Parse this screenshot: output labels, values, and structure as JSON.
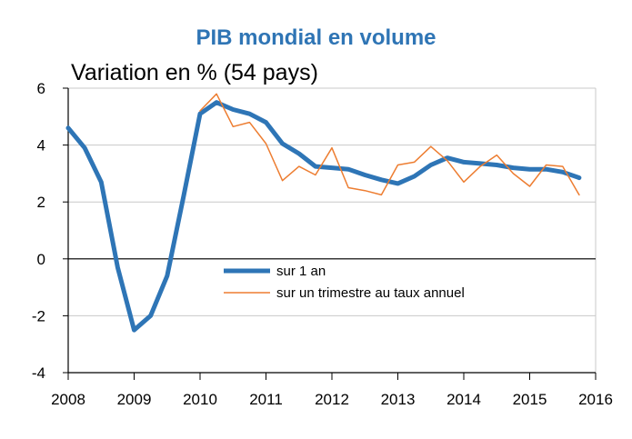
{
  "chart_data": {
    "type": "line",
    "title": "PIB mondial en volume",
    "ylabel": "Variation en % (54 pays)",
    "xlabel": "",
    "xlim": [
      2008,
      2016
    ],
    "ylim": [
      -4,
      6
    ],
    "x_ticks": [
      "2008",
      "2009",
      "2010",
      "2011",
      "2012",
      "2013",
      "2014",
      "2015",
      "2016"
    ],
    "y_ticks": [
      "6",
      "4",
      "2",
      "0",
      "-2",
      "-4"
    ],
    "grid": "horizontal",
    "legend_position": "center",
    "series": [
      {
        "name": "sur 1 an",
        "color": "#2e75b6",
        "x": [
          2008.0,
          2008.25,
          2008.5,
          2008.75,
          2009.0,
          2009.25,
          2009.5,
          2009.75,
          2010.0,
          2010.25,
          2010.5,
          2010.75,
          2011.0,
          2011.25,
          2011.5,
          2011.75,
          2012.0,
          2012.25,
          2012.5,
          2012.75,
          2013.0,
          2013.25,
          2013.5,
          2013.75,
          2014.0,
          2014.25,
          2014.5,
          2014.75,
          2015.0,
          2015.25,
          2015.5,
          2015.75
        ],
        "values": [
          4.6,
          3.9,
          2.7,
          -0.3,
          -2.5,
          -2.0,
          -0.6,
          2.2,
          5.1,
          5.5,
          5.25,
          5.1,
          4.8,
          4.05,
          3.7,
          3.25,
          3.2,
          3.15,
          2.95,
          2.78,
          2.65,
          2.9,
          3.3,
          3.55,
          3.4,
          3.35,
          3.3,
          3.2,
          3.15,
          3.15,
          3.05,
          2.85
        ]
      },
      {
        "name": "sur un trimestre au taux annuel",
        "color": "#ed7d31",
        "x": [
          2010.0,
          2010.25,
          2010.5,
          2010.75,
          2011.0,
          2011.25,
          2011.5,
          2011.75,
          2012.0,
          2012.25,
          2012.5,
          2012.75,
          2013.0,
          2013.25,
          2013.5,
          2013.75,
          2014.0,
          2014.25,
          2014.5,
          2014.75,
          2015.0,
          2015.25,
          2015.5,
          2015.75
        ],
        "values": [
          5.2,
          5.8,
          4.65,
          4.8,
          4.05,
          2.75,
          3.25,
          2.95,
          3.9,
          2.5,
          2.4,
          2.25,
          3.3,
          3.4,
          3.95,
          3.45,
          2.7,
          3.25,
          3.65,
          3.0,
          2.55,
          3.3,
          3.25,
          2.25
        ]
      }
    ]
  }
}
